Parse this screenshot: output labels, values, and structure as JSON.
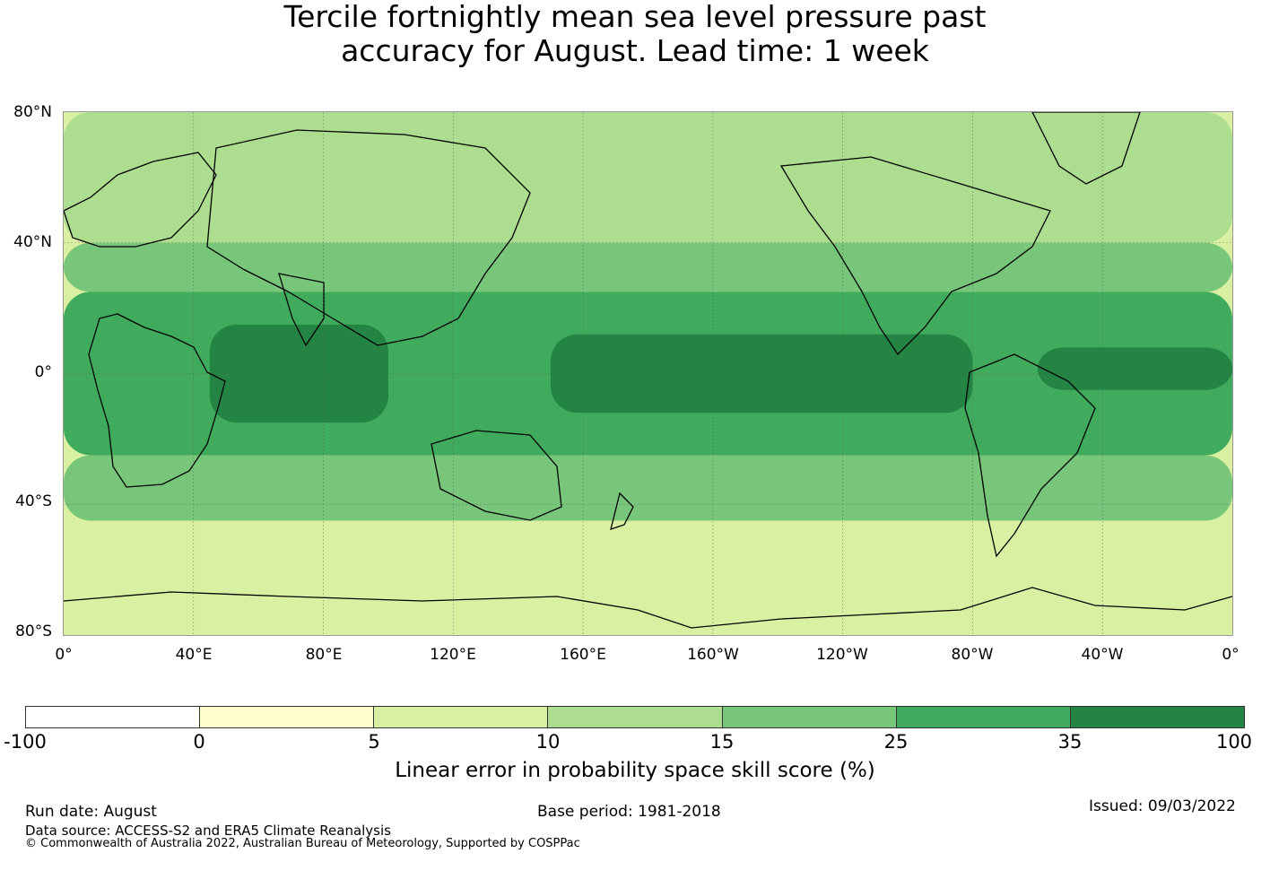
{
  "title": {
    "line1": "Tercile fortnightly mean sea level pressure past",
    "line2": "accuracy for August. Lead time: 1 week"
  },
  "map": {
    "lat_labels": [
      "80°N",
      "40°N",
      "0°",
      "40°S",
      "80°S"
    ],
    "lon_labels": [
      "0°",
      "40°E",
      "80°E",
      "120°E",
      "160°E",
      "160°W",
      "120°W",
      "80°W",
      "40°W",
      "0°"
    ],
    "grid": true,
    "coastlines": true,
    "zones": [
      {
        "lat": [
          -12,
          12
        ],
        "lon": [
          150,
          280
        ],
        "score_class": "35-100"
      },
      {
        "lat": [
          -15,
          15
        ],
        "lon": [
          45,
          100
        ],
        "score_class": "35-100"
      },
      {
        "lat": [
          -5,
          8
        ],
        "lon": [
          300,
          360
        ],
        "score_class": "35-100"
      },
      {
        "lat": [
          -25,
          25
        ],
        "lon": [
          0,
          360
        ],
        "score_class": "25-35"
      },
      {
        "lat": [
          -45,
          -25
        ],
        "lon": [
          0,
          360
        ],
        "score_class": "15-25"
      },
      {
        "lat": [
          25,
          40
        ],
        "lon": [
          0,
          360
        ],
        "score_class": "15-25"
      },
      {
        "lat": [
          40,
          80
        ],
        "lon": [
          0,
          360
        ],
        "score_class": "10-15"
      },
      {
        "lat": [
          -80,
          -45
        ],
        "lon": [
          0,
          360
        ],
        "score_class": "5-10"
      }
    ]
  },
  "colorbar": {
    "colors": [
      "#ffffff",
      "#ffffcc",
      "#d9f0a3",
      "#addd8e",
      "#78c679",
      "#41ab5d",
      "#238443"
    ],
    "ticks": [
      "-100",
      "0",
      "5",
      "10",
      "15",
      "25",
      "35",
      "100"
    ],
    "label": "Linear error in probability space skill score (%)"
  },
  "footer": {
    "run_date": "Run date: August",
    "base_period": "Base period: 1981-2018",
    "issued": "Issued: 09/03/2022",
    "data_source": "Data source: ACCESS-S2 and ERA5 Climate Reanalysis",
    "copyright": "© Commonwealth of Australia 2022, Australian Bureau of Meteorology, Supported by COSPPac"
  }
}
